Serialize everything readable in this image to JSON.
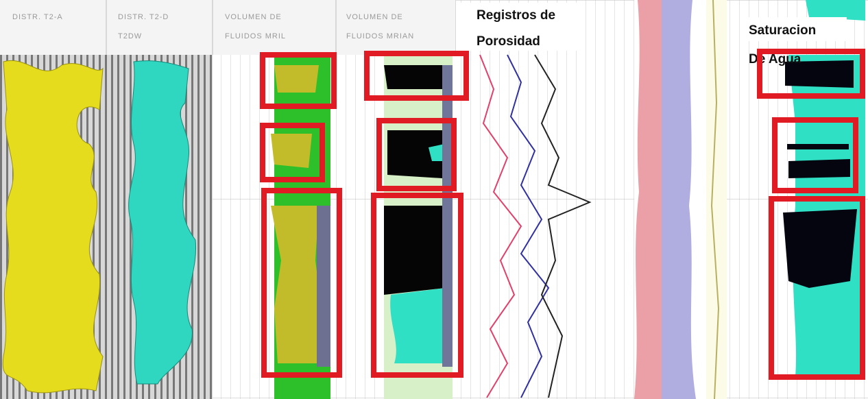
{
  "headers": [
    [
      "DISTR. T2-A"
    ],
    [
      "DISTR. T2-D",
      "T2DW"
    ],
    [
      "VOLUMEN DE",
      "FLUIDOS MRIL"
    ],
    [
      "VOLUMEN DE",
      "FLUIDOS MRIAN"
    ]
  ],
  "porosity_title": [
    "Registros de",
    "Porosidad"
  ],
  "saturation_title": [
    "Saturacion",
    "De Agua"
  ]
}
